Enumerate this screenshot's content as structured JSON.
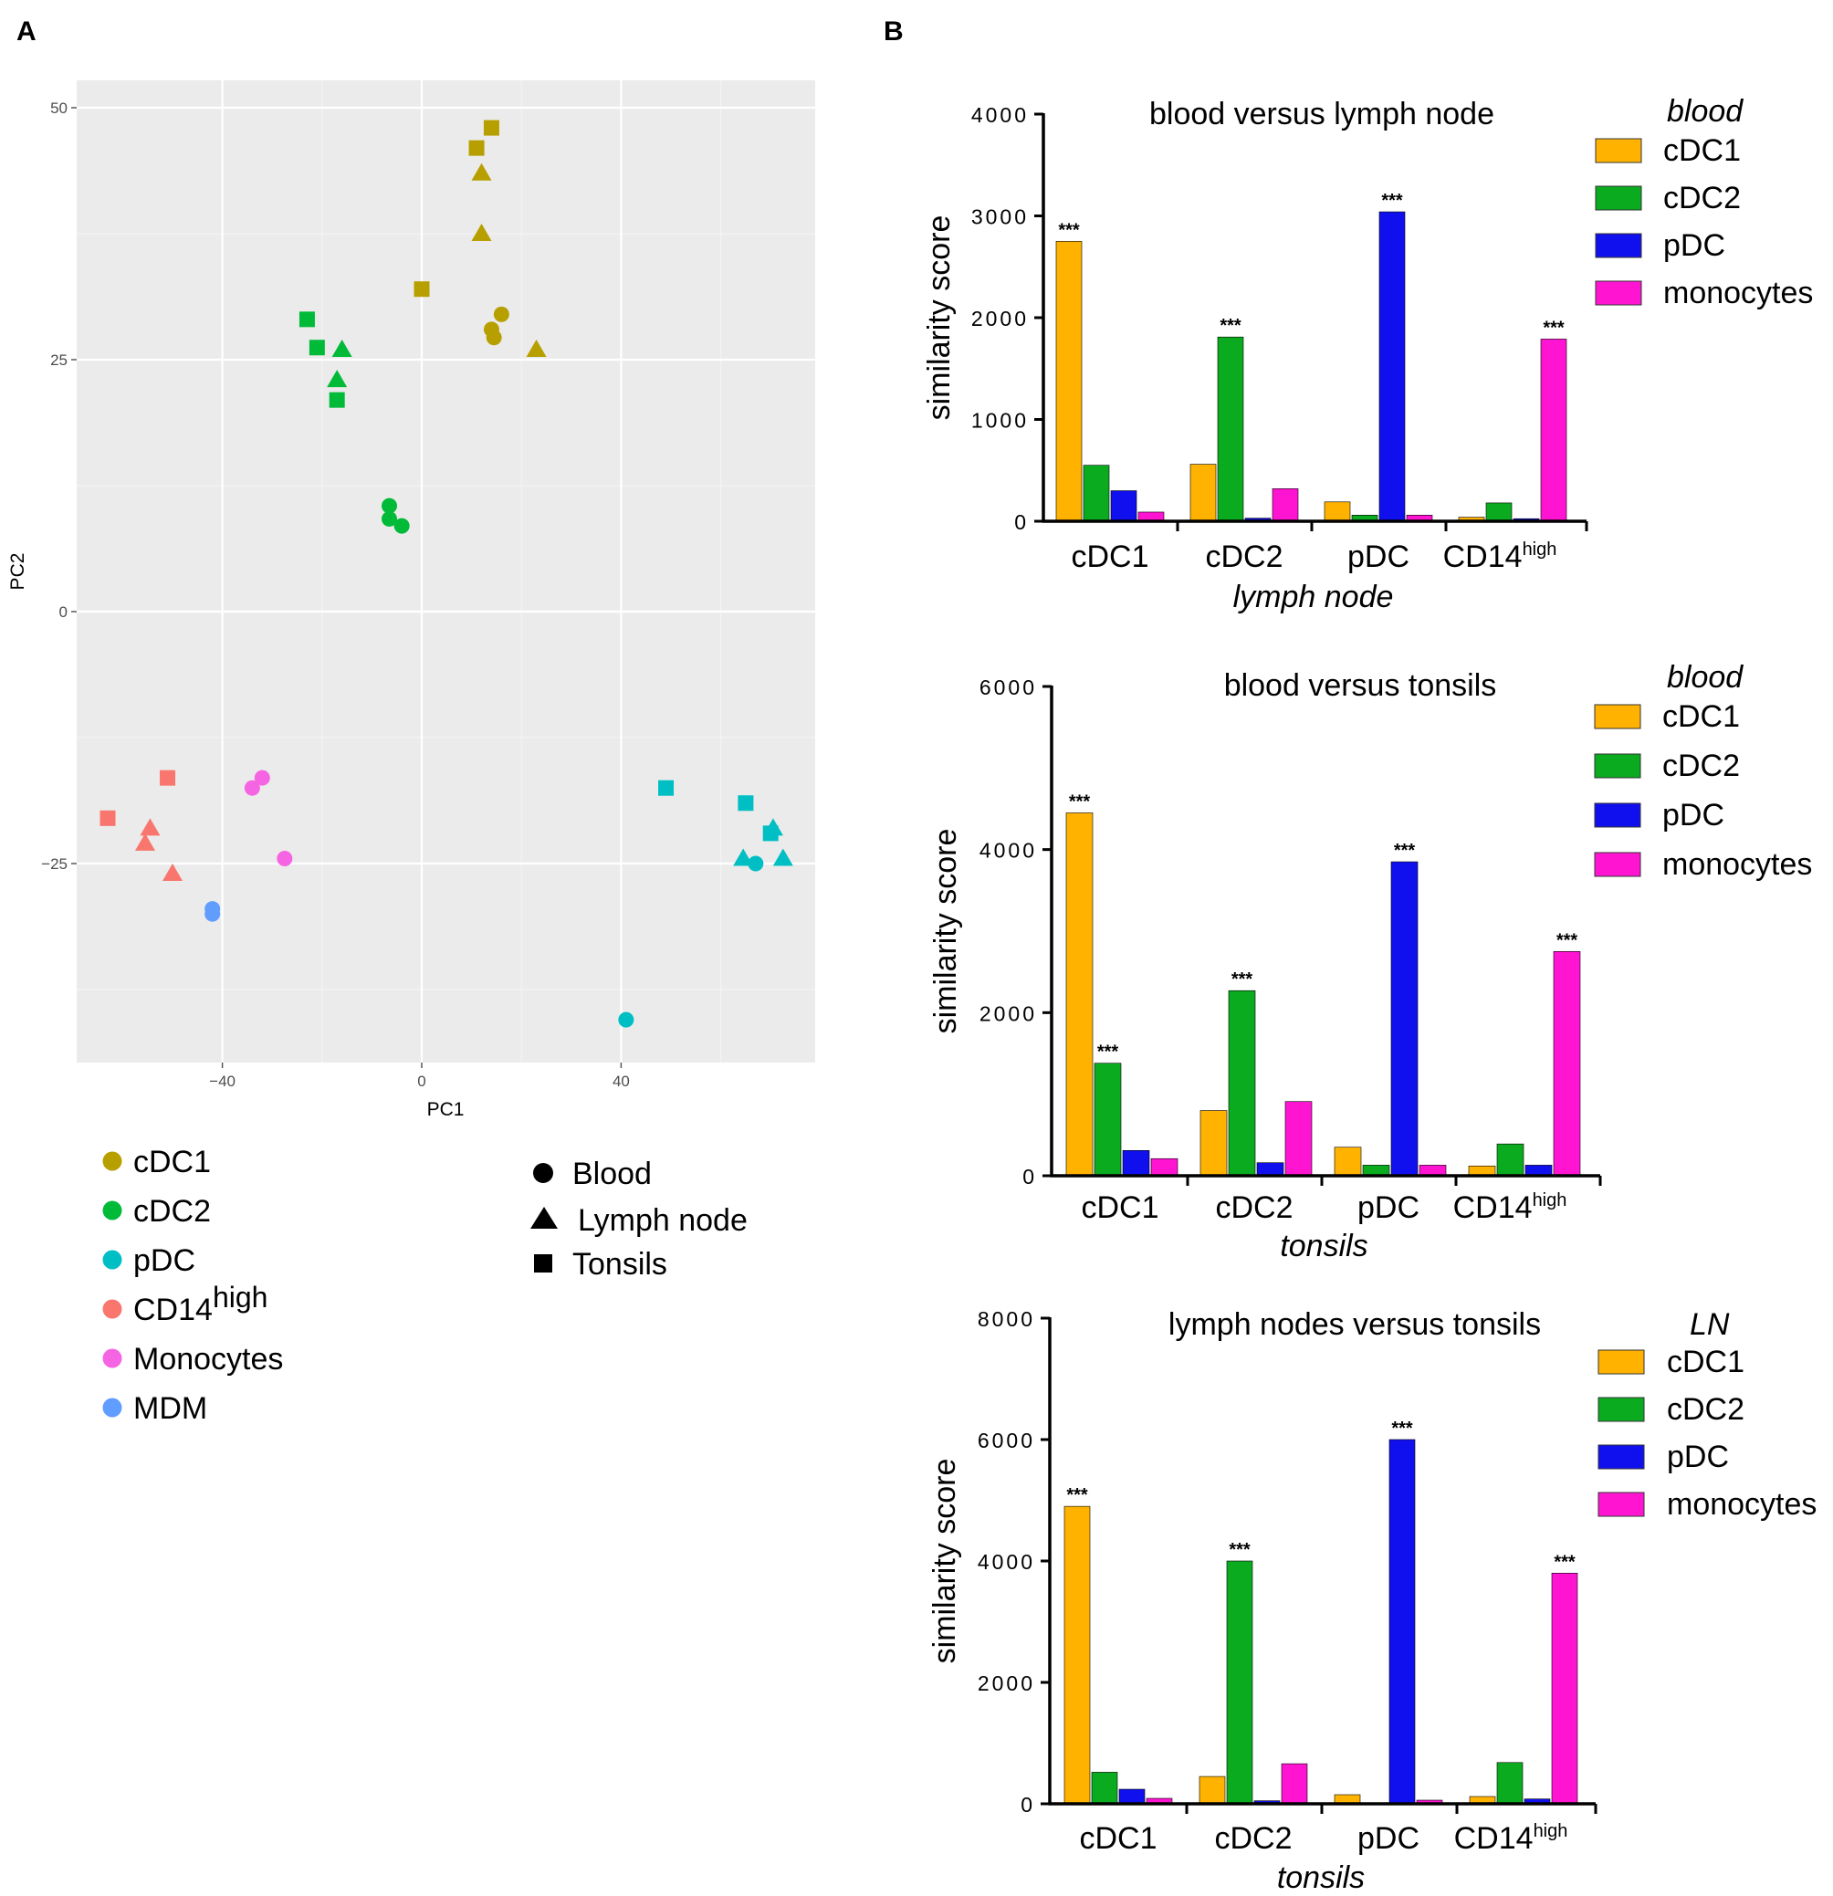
{
  "panels": {
    "a_label": "A",
    "b_label": "B"
  },
  "chart_data": [
    {
      "type": "scatter",
      "xlabel": "PC1",
      "ylabel": "PC2",
      "xticks": [
        -40,
        0,
        40
      ],
      "yticks": [
        50,
        25,
        0,
        -25
      ],
      "xlim": [
        -69,
        79
      ],
      "ylim": [
        -45,
        52.5
      ],
      "grid": true,
      "color_legend": [
        {
          "label": "cDC1",
          "color": "#b79f00"
        },
        {
          "label": "cDC2",
          "color": "#00ba38"
        },
        {
          "label": "pDC",
          "color": "#00bfc4"
        },
        {
          "label": "CD14",
          "sup": "high",
          "color": "#f8766d"
        },
        {
          "label": "Monocytes",
          "color": "#f564e3"
        },
        {
          "label": "MDM",
          "color": "#619cff"
        }
      ],
      "shape_legend": [
        {
          "label": "Blood",
          "shape": "circle"
        },
        {
          "label": "Lymph node",
          "shape": "triangle"
        },
        {
          "label": "Tonsils",
          "shape": "square"
        }
      ],
      "points": [
        {
          "x": 14,
          "y": 48,
          "group": "cDC1",
          "shape": "square"
        },
        {
          "x": 11,
          "y": 46,
          "group": "cDC1",
          "shape": "square"
        },
        {
          "x": 12,
          "y": 43.5,
          "group": "cDC1",
          "shape": "triangle"
        },
        {
          "x": 12,
          "y": 37.5,
          "group": "cDC1",
          "shape": "triangle"
        },
        {
          "x": 0,
          "y": 32,
          "group": "cDC1",
          "shape": "square"
        },
        {
          "x": 16,
          "y": 29.5,
          "group": "cDC1",
          "shape": "circle"
        },
        {
          "x": 14,
          "y": 28,
          "group": "cDC1",
          "shape": "circle"
        },
        {
          "x": 14.5,
          "y": 27.2,
          "group": "cDC1",
          "shape": "circle"
        },
        {
          "x": 23,
          "y": 26,
          "group": "cDC1",
          "shape": "triangle"
        },
        {
          "x": -23,
          "y": 29,
          "group": "cDC2",
          "shape": "square"
        },
        {
          "x": -21,
          "y": 26.2,
          "group": "cDC2",
          "shape": "square"
        },
        {
          "x": -16,
          "y": 26,
          "group": "cDC2",
          "shape": "triangle"
        },
        {
          "x": -17,
          "y": 23,
          "group": "cDC2",
          "shape": "triangle"
        },
        {
          "x": -17,
          "y": 21,
          "group": "cDC2",
          "shape": "square"
        },
        {
          "x": -6.5,
          "y": 10.5,
          "group": "cDC2",
          "shape": "circle"
        },
        {
          "x": -6.5,
          "y": 9.2,
          "group": "cDC2",
          "shape": "circle"
        },
        {
          "x": -4,
          "y": 8.5,
          "group": "cDC2",
          "shape": "circle"
        },
        {
          "x": 49,
          "y": -17.5,
          "group": "pDC",
          "shape": "square"
        },
        {
          "x": 65,
          "y": -19,
          "group": "pDC",
          "shape": "square"
        },
        {
          "x": 70,
          "y": -22,
          "group": "pDC",
          "shape": "square"
        },
        {
          "x": 70.5,
          "y": -21.5,
          "group": "pDC",
          "shape": "triangle"
        },
        {
          "x": 64.5,
          "y": -24.5,
          "group": "pDC",
          "shape": "triangle"
        },
        {
          "x": 67,
          "y": -25,
          "group": "pDC",
          "shape": "circle"
        },
        {
          "x": 72.5,
          "y": -24.5,
          "group": "pDC",
          "shape": "triangle"
        },
        {
          "x": 41,
          "y": -40.5,
          "group": "pDC",
          "shape": "circle"
        },
        {
          "x": -51,
          "y": -16.5,
          "group": "CD14high",
          "shape": "square"
        },
        {
          "x": -63,
          "y": -20.5,
          "group": "CD14high",
          "shape": "square"
        },
        {
          "x": -54.5,
          "y": -21.5,
          "group": "CD14high",
          "shape": "triangle"
        },
        {
          "x": -55.5,
          "y": -23,
          "group": "CD14high",
          "shape": "triangle"
        },
        {
          "x": -50,
          "y": -26,
          "group": "CD14high",
          "shape": "triangle"
        },
        {
          "x": -32,
          "y": -16.5,
          "group": "Monocytes",
          "shape": "circle"
        },
        {
          "x": -34,
          "y": -17.5,
          "group": "Monocytes",
          "shape": "circle"
        },
        {
          "x": -27.5,
          "y": -24.5,
          "group": "Monocytes",
          "shape": "circle"
        },
        {
          "x": -42,
          "y": -29.5,
          "group": "MDM",
          "shape": "circle"
        },
        {
          "x": -42,
          "y": -30,
          "group": "MDM",
          "shape": "circle"
        }
      ]
    },
    {
      "type": "bar",
      "title": "blood  versus  lymph  node",
      "xlabel": "lymph node",
      "ylabel": "similarity score",
      "ylim": [
        0,
        4000
      ],
      "yticks": [
        "0",
        "1000",
        "2000",
        "3000",
        "4000"
      ],
      "categories": [
        {
          "label": "cDC1"
        },
        {
          "label": "cDC2"
        },
        {
          "label": "pDC"
        },
        {
          "label": "CD14",
          "sup": "high"
        }
      ],
      "legend_title": "blood",
      "series": [
        {
          "name": "cDC1",
          "color": "#ffb300",
          "values": [
            2750,
            560,
            190,
            40
          ]
        },
        {
          "name": "cDC2",
          "color": "#0aab1e",
          "values": [
            550,
            1810,
            60,
            180
          ]
        },
        {
          "name": "pDC",
          "color": "#1010ee",
          "values": [
            300,
            30,
            3040,
            25
          ]
        },
        {
          "name": "monocytes",
          "color": "#ff14d2",
          "values": [
            90,
            320,
            60,
            1790
          ]
        }
      ],
      "significance": [
        {
          "series": 0,
          "category": 0,
          "label": "***"
        },
        {
          "series": 1,
          "category": 1,
          "label": "***"
        },
        {
          "series": 2,
          "category": 2,
          "label": "***"
        },
        {
          "series": 3,
          "category": 3,
          "label": "***"
        }
      ]
    },
    {
      "type": "bar",
      "title": "blood versus tonsils",
      "xlabel": "tonsils",
      "ylabel": "similarity score",
      "ylim": [
        0,
        6000
      ],
      "yticks": [
        "0",
        "2000",
        "4000",
        "6000"
      ],
      "categories": [
        {
          "label": "cDC1"
        },
        {
          "label": "cDC2"
        },
        {
          "label": "pDC"
        },
        {
          "label": "CD14",
          "sup": "high"
        }
      ],
      "legend_title": "blood",
      "series": [
        {
          "name": "cDC1",
          "color": "#ffb300",
          "values": [
            4450,
            800,
            350,
            120
          ]
        },
        {
          "name": "cDC2",
          "color": "#0aab1e",
          "values": [
            1380,
            2270,
            130,
            390
          ]
        },
        {
          "name": "pDC",
          "color": "#1010ee",
          "values": [
            310,
            160,
            3850,
            130
          ]
        },
        {
          "name": "monocytes",
          "color": "#ff14d2",
          "values": [
            210,
            910,
            130,
            2750
          ]
        }
      ],
      "significance": [
        {
          "series": 0,
          "category": 0,
          "label": "***"
        },
        {
          "series": 1,
          "category": 0,
          "label": "***"
        },
        {
          "series": 1,
          "category": 1,
          "label": "***"
        },
        {
          "series": 2,
          "category": 2,
          "label": "***"
        },
        {
          "series": 3,
          "category": 3,
          "label": "***"
        }
      ]
    },
    {
      "type": "bar",
      "title": "lymph  nodes  versus  tonsils",
      "xlabel": "tonsils",
      "ylabel": "similarity score",
      "ylim": [
        0,
        8000
      ],
      "yticks": [
        "0",
        "2000",
        "4000",
        "6000",
        "8000"
      ],
      "categories": [
        {
          "label": "cDC1"
        },
        {
          "label": "cDC2"
        },
        {
          "label": "pDC"
        },
        {
          "label": "CD14",
          "sup": "high"
        }
      ],
      "legend_title": "LN",
      "series": [
        {
          "name": "cDC1",
          "color": "#ffb300",
          "values": [
            4900,
            450,
            150,
            120
          ]
        },
        {
          "name": "cDC2",
          "color": "#0aab1e",
          "values": [
            520,
            4000,
            0,
            680
          ]
        },
        {
          "name": "pDC",
          "color": "#1010ee",
          "values": [
            240,
            50,
            6000,
            80
          ]
        },
        {
          "name": "monocytes",
          "color": "#ff14d2",
          "values": [
            90,
            660,
            60,
            3800
          ]
        }
      ],
      "significance": [
        {
          "series": 0,
          "category": 0,
          "label": "***"
        },
        {
          "series": 1,
          "category": 1,
          "label": "***"
        },
        {
          "series": 2,
          "category": 2,
          "label": "***"
        },
        {
          "series": 3,
          "category": 3,
          "label": "***"
        }
      ]
    }
  ]
}
